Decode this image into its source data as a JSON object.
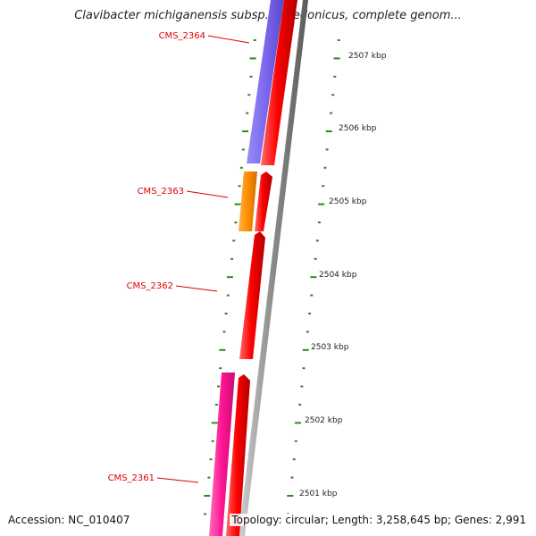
{
  "title": "Clavibacter michiganensis subsp. sepedonicus, complete genom...",
  "accession_text": "Accession: NC_010407",
  "summary_text": "Topology: circular; Length: 3,258,645 bp; Genes: 2,991",
  "colors": {
    "gene_label": "#dd0000",
    "forward_gene": "#ff0000",
    "backbone": "#888888",
    "ruler": "#2a8a1a",
    "purple_gene": "#7b68ee",
    "orange_gene": "#ff8c00",
    "pink_gene": "#ff1493"
  },
  "genes": [
    {
      "id": "CMS_2364",
      "label": "CMS_2364",
      "color": "#7b68ee"
    },
    {
      "id": "CMS_2363",
      "label": "CMS_2363",
      "color": "#ff8c00"
    },
    {
      "id": "CMS_2362",
      "label": "CMS_2362",
      "color": "#ff0000"
    },
    {
      "id": "CMS_2361",
      "label": "CMS_2361",
      "color": "#ff1493"
    }
  ],
  "ruler_ticks": [
    "2507 kbp",
    "2506 kbp",
    "2505 kbp",
    "2504 kbp",
    "2503 kbp",
    "2502 kbp",
    "2501 kbp"
  ]
}
